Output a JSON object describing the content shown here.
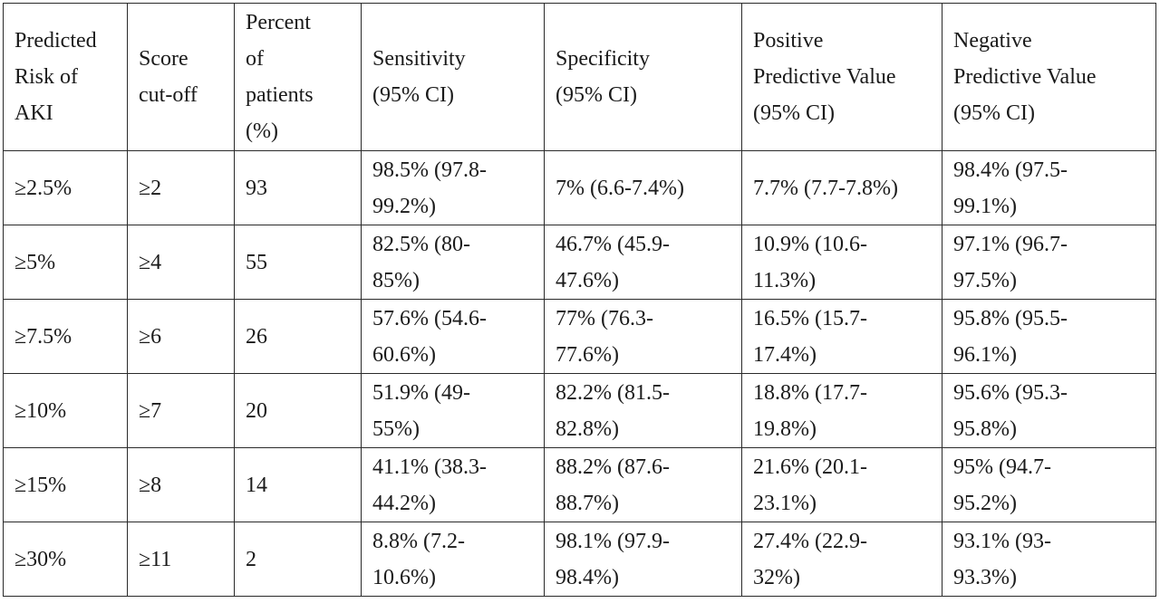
{
  "table": {
    "headers": [
      "Predicted\nRisk of\nAKI",
      "Score\ncut-off",
      "Percent\nof\npatients\n(%)",
      "Sensitivity\n(95% CI)",
      "Specificity\n(95% CI)",
      "Positive\nPredictive Value\n(95% CI)",
      "Negative\nPredictive Value\n(95% CI)"
    ],
    "rows": [
      [
        "≥2.5%",
        "≥2",
        "93",
        "98.5% (97.8-\n99.2%)",
        "7% (6.6-7.4%)",
        "7.7% (7.7-7.8%)",
        "98.4% (97.5-\n99.1%)"
      ],
      [
        "≥5%",
        "≥4",
        "55",
        "82.5% (80-\n85%)",
        "46.7% (45.9-\n47.6%)",
        "10.9% (10.6-\n11.3%)",
        "97.1% (96.7-\n97.5%)"
      ],
      [
        "≥7.5%",
        "≥6",
        "26",
        "57.6% (54.6-\n60.6%)",
        "77% (76.3-\n77.6%)",
        "16.5% (15.7-\n17.4%)",
        "95.8% (95.5-\n96.1%)"
      ],
      [
        "≥10%",
        "≥7",
        "20",
        "51.9% (49-\n55%)",
        "82.2% (81.5-\n82.8%)",
        "18.8% (17.7-\n19.8%)",
        "95.6% (95.3-\n95.8%)"
      ],
      [
        "≥15%",
        "≥8",
        "14",
        "41.1% (38.3-\n44.2%)",
        "88.2% (87.6-\n88.7%)",
        "21.6% (20.1-\n23.1%)",
        "95% (94.7-\n95.2%)"
      ],
      [
        "≥30%",
        "≥11",
        "2",
        "8.8% (7.2-\n10.6%)",
        "98.1% (97.9-\n98.4%)",
        "27.4% (22.9-\n32%)",
        "93.1% (93-\n93.3%)"
      ]
    ]
  }
}
